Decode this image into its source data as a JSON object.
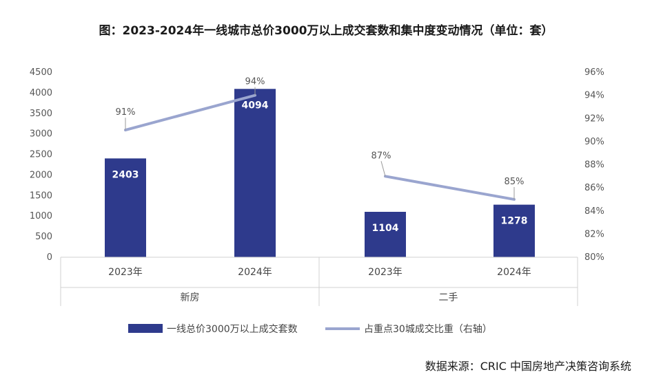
{
  "title": "图：2023-2024年一线城市总价3000万以上成交套数和集中度变动情况（单位：套）",
  "source": "数据来源：CRIC 中国房地产决策咨询系统",
  "colors": {
    "bar": "#2e3a8c",
    "line": "#9aa5cf",
    "axis": "#d0d0d0"
  },
  "chart_data": {
    "type": "bar",
    "title": "图：2023-2024年一线城市总价3000万以上成交套数和集中度变动情况（单位：套）",
    "groups": [
      "新房",
      "二手"
    ],
    "categories": [
      "2023年",
      "2024年",
      "2023年",
      "2024年"
    ],
    "category_group": [
      0,
      0,
      1,
      1
    ],
    "series": [
      {
        "name": "一线总价3000万以上成交套数",
        "type": "bar",
        "axis": "left",
        "values": [
          2403,
          4094,
          1104,
          1278
        ],
        "labels": [
          "2403",
          "4094",
          "1104",
          "1278"
        ]
      },
      {
        "name": "占重点30城成交比重（右轴）",
        "type": "line",
        "axis": "right",
        "values": [
          91,
          94,
          87,
          85
        ],
        "labels": [
          "91%",
          "94%",
          "87%",
          "85%"
        ],
        "segments": [
          [
            0,
            1
          ],
          [
            2,
            3
          ]
        ]
      }
    ],
    "ylim": [
      0,
      4500
    ],
    "yticks": [
      "4500",
      "4000",
      "3500",
      "3000",
      "2500",
      "2000",
      "1500",
      "1000",
      "500",
      "0"
    ],
    "y2lim": [
      80,
      96
    ],
    "y2ticks": [
      "96%",
      "94%",
      "92%",
      "90%",
      "88%",
      "86%",
      "84%",
      "82%",
      "80%"
    ],
    "legend_position": "bottom"
  }
}
